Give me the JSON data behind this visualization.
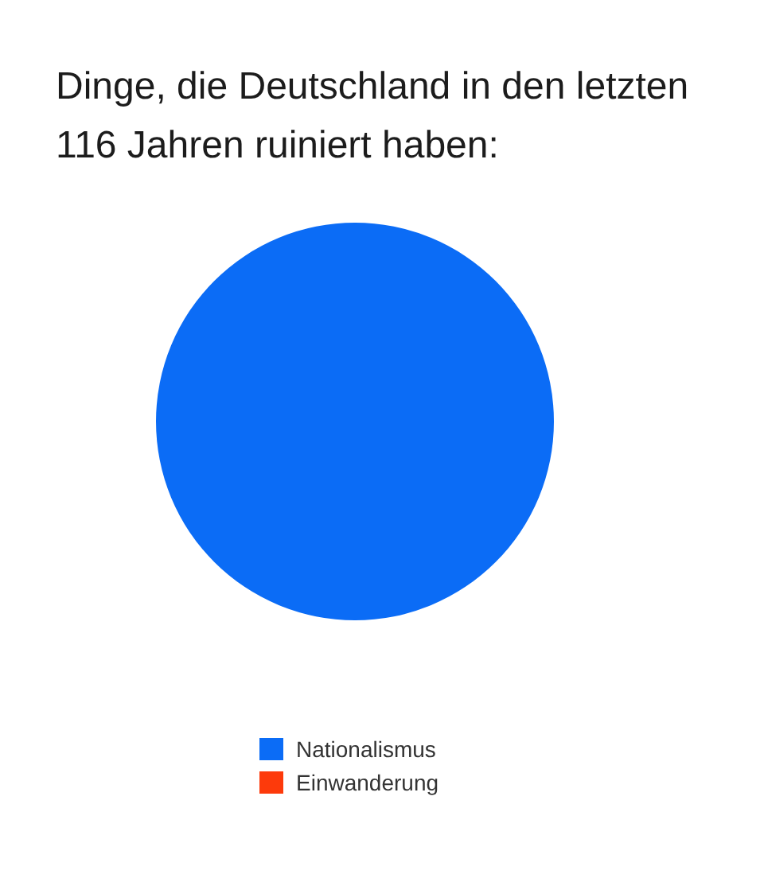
{
  "chart_data": {
    "type": "pie",
    "title": "Dinge, die Deutschland in den letzten 116 Jahren ruiniert haben:",
    "categories": [
      "Nationalismus",
      "Einwanderung"
    ],
    "values": [
      100,
      0
    ],
    "colors": [
      "#0b6cf6",
      "#fd3a0b"
    ],
    "legend": "bottom"
  }
}
